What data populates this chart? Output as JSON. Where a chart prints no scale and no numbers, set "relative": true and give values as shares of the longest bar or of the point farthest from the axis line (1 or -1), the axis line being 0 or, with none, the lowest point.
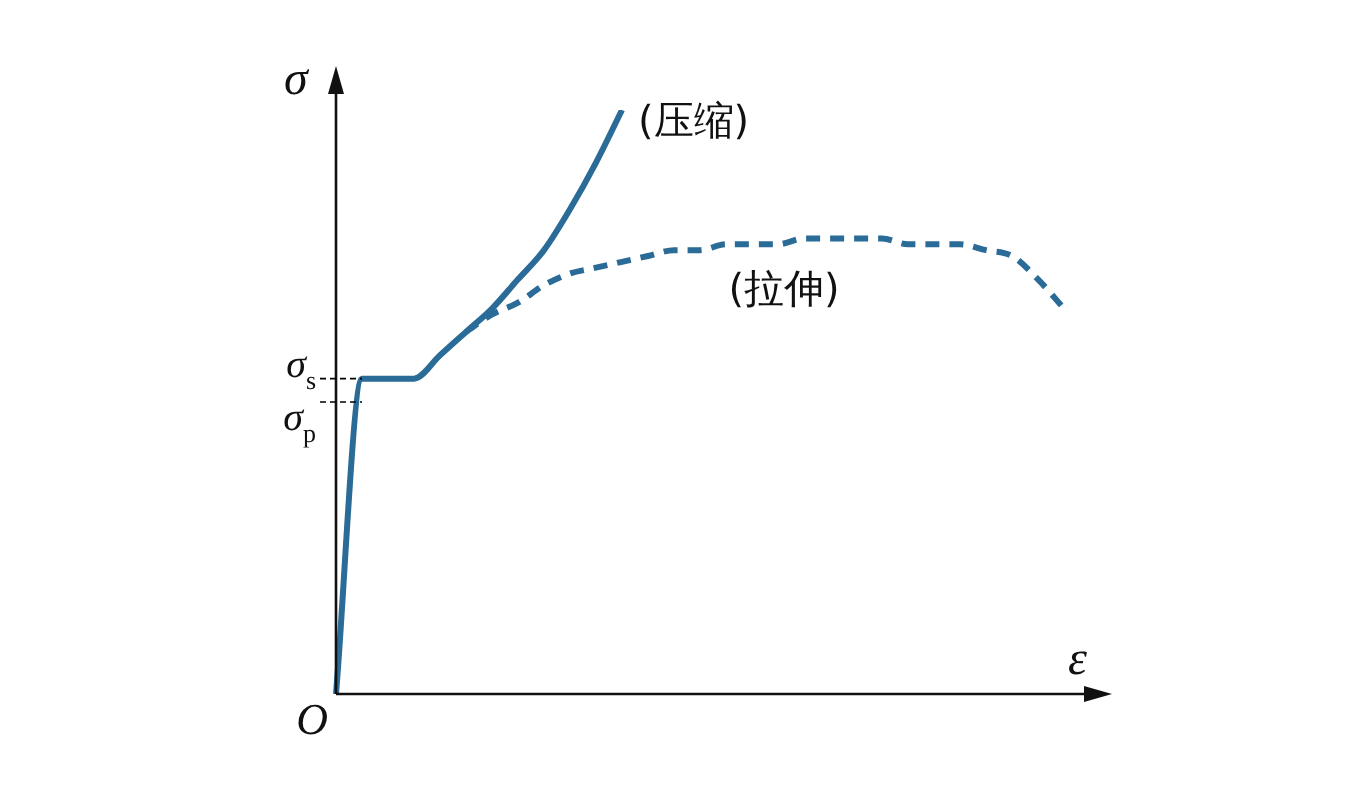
{
  "chart_data": {
    "type": "line",
    "relative": true,
    "xlabel": "ε",
    "ylabel": "σ",
    "annotations": [
      "O"
    ],
    "categories": [
      null,
      null,
      null,
      null,
      null,
      null,
      null,
      null,
      null,
      null,
      null,
      null,
      null,
      null,
      null,
      null,
      null,
      null,
      null,
      null,
      null,
      null,
      null,
      null,
      null,
      null,
      null,
      null,
      null
    ],
    "series": [
      {
        "name": "(压缩)",
        "color": "#2a6b98",
        "line_style": "solid",
        "values": [
          0,
          0.54,
          0.54,
          0.54,
          0.58,
          0.62,
          0.66,
          0.71,
          0.76,
          0.83,
          0.91,
          1.0,
          null,
          null,
          null,
          null,
          null,
          null,
          null,
          null,
          null,
          null,
          null,
          null,
          null,
          null,
          null,
          null,
          null
        ]
      },
      {
        "name": "(拉伸)",
        "color": "#2a6b98",
        "line_style": "dashed",
        "values": [
          null,
          null,
          null,
          null,
          null,
          0.62,
          0.65,
          0.67,
          0.7,
          0.72,
          0.73,
          0.74,
          0.75,
          0.76,
          0.76,
          0.77,
          0.77,
          0.77,
          0.78,
          0.78,
          0.78,
          0.78,
          0.77,
          0.77,
          0.77,
          0.76,
          0.75,
          0.71,
          0.66
        ]
      }
    ],
    "ref_lines": [
      {
        "axis": "y",
        "value": 0.54,
        "label": "σ$_{s}$",
        "line_style": "dashed",
        "color": "#000000"
      },
      {
        "axis": "y",
        "value": 0.5,
        "label": "σ$_{p}$",
        "line_style": "dashed",
        "color": "#000000"
      }
    ],
    "legend": false,
    "marker": "none"
  }
}
